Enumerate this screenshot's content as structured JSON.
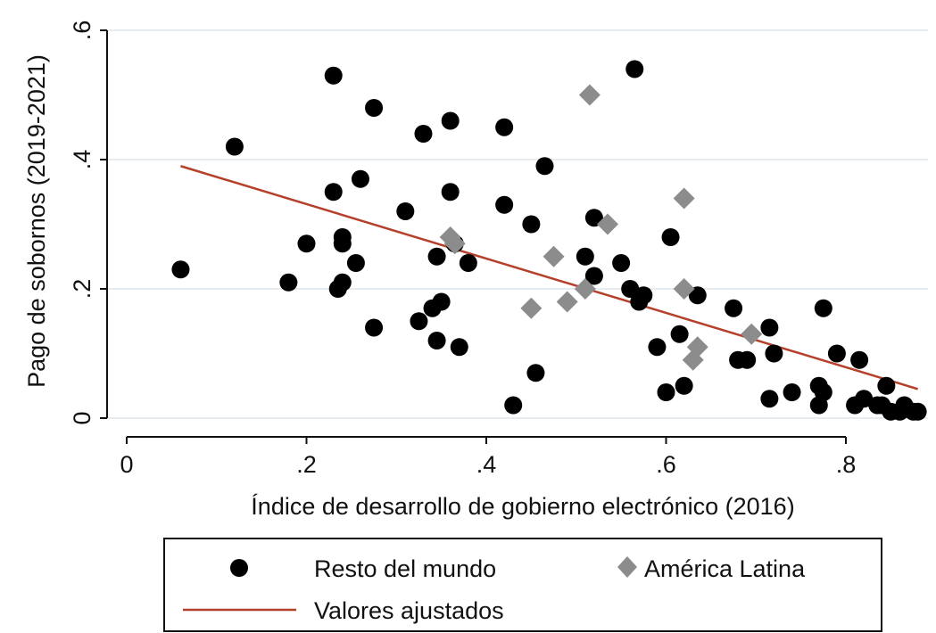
{
  "chart_data": {
    "type": "scatter",
    "xlabel": "Índice de desarrollo de gobierno electrónico (2016)",
    "ylabel": "Pago de sobornos (2019-2021)",
    "xlim": [
      0,
      0.9
    ],
    "ylim": [
      0,
      0.6
    ],
    "x_ticks": [
      {
        "value": 0,
        "label": "0"
      },
      {
        "value": 0.2,
        "label": ".2"
      },
      {
        "value": 0.4,
        "label": ".4"
      },
      {
        "value": 0.6,
        "label": ".6"
      },
      {
        "value": 0.8,
        "label": ".8"
      }
    ],
    "y_ticks": [
      {
        "value": 0,
        "label": "0"
      },
      {
        "value": 0.2,
        "label": ".2"
      },
      {
        "value": 0.4,
        "label": ".4"
      },
      {
        "value": 0.6,
        "label": ".6"
      }
    ],
    "grid": "horizontal",
    "legend_position": "bottom",
    "series": [
      {
        "name": "Resto del mundo",
        "marker": "circle",
        "color": "#000000",
        "points": [
          [
            0.06,
            0.23
          ],
          [
            0.12,
            0.42
          ],
          [
            0.18,
            0.21
          ],
          [
            0.2,
            0.27
          ],
          [
            0.23,
            0.53
          ],
          [
            0.23,
            0.35
          ],
          [
            0.24,
            0.28
          ],
          [
            0.24,
            0.27
          ],
          [
            0.235,
            0.2
          ],
          [
            0.24,
            0.21
          ],
          [
            0.255,
            0.24
          ],
          [
            0.26,
            0.37
          ],
          [
            0.275,
            0.48
          ],
          [
            0.275,
            0.14
          ],
          [
            0.31,
            0.32
          ],
          [
            0.325,
            0.15
          ],
          [
            0.33,
            0.44
          ],
          [
            0.34,
            0.17
          ],
          [
            0.345,
            0.25
          ],
          [
            0.345,
            0.12
          ],
          [
            0.35,
            0.18
          ],
          [
            0.36,
            0.46
          ],
          [
            0.36,
            0.35
          ],
          [
            0.365,
            0.27
          ],
          [
            0.37,
            0.11
          ],
          [
            0.38,
            0.24
          ],
          [
            0.42,
            0.45
          ],
          [
            0.42,
            0.33
          ],
          [
            0.43,
            0.02
          ],
          [
            0.45,
            0.3
          ],
          [
            0.455,
            0.07
          ],
          [
            0.465,
            0.39
          ],
          [
            0.51,
            0.25
          ],
          [
            0.52,
            0.31
          ],
          [
            0.52,
            0.22
          ],
          [
            0.55,
            0.24
          ],
          [
            0.56,
            0.2
          ],
          [
            0.565,
            0.54
          ],
          [
            0.57,
            0.18
          ],
          [
            0.575,
            0.19
          ],
          [
            0.59,
            0.11
          ],
          [
            0.6,
            0.04
          ],
          [
            0.605,
            0.28
          ],
          [
            0.615,
            0.13
          ],
          [
            0.62,
            0.05
          ],
          [
            0.635,
            0.19
          ],
          [
            0.675,
            0.17
          ],
          [
            0.68,
            0.09
          ],
          [
            0.69,
            0.09
          ],
          [
            0.715,
            0.03
          ],
          [
            0.715,
            0.14
          ],
          [
            0.72,
            0.1
          ],
          [
            0.74,
            0.04
          ],
          [
            0.77,
            0.05
          ],
          [
            0.77,
            0.02
          ],
          [
            0.775,
            0.17
          ],
          [
            0.775,
            0.04
          ],
          [
            0.79,
            0.1
          ],
          [
            0.81,
            0.02
          ],
          [
            0.815,
            0.09
          ],
          [
            0.82,
            0.03
          ],
          [
            0.835,
            0.02
          ],
          [
            0.84,
            0.02
          ],
          [
            0.845,
            0.05
          ],
          [
            0.85,
            0.01
          ],
          [
            0.86,
            0.01
          ],
          [
            0.865,
            0.02
          ],
          [
            0.875,
            0.01
          ],
          [
            0.88,
            0.01
          ]
        ]
      },
      {
        "name": "América Latina",
        "marker": "diamond",
        "color": "#8c8c8c",
        "points": [
          [
            0.36,
            0.28
          ],
          [
            0.365,
            0.27
          ],
          [
            0.45,
            0.17
          ],
          [
            0.475,
            0.25
          ],
          [
            0.49,
            0.18
          ],
          [
            0.51,
            0.2
          ],
          [
            0.515,
            0.5
          ],
          [
            0.535,
            0.3
          ],
          [
            0.62,
            0.34
          ],
          [
            0.62,
            0.2
          ],
          [
            0.63,
            0.09
          ],
          [
            0.635,
            0.11
          ],
          [
            0.695,
            0.13
          ]
        ]
      },
      {
        "name": "Valores ajustados",
        "marker": "line",
        "color": "#b5412c",
        "points": [
          [
            0.06,
            0.39
          ],
          [
            0.88,
            0.045
          ]
        ]
      }
    ]
  }
}
